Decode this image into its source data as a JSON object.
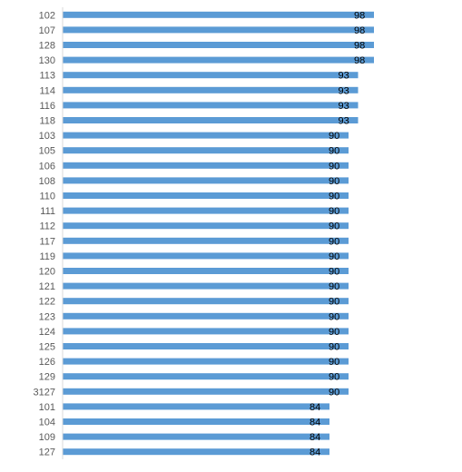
{
  "chart_data": {
    "type": "bar",
    "orientation": "horizontal",
    "categories": [
      "102",
      "107",
      "128",
      "130",
      "113",
      "114",
      "116",
      "118",
      "103",
      "105",
      "106",
      "108",
      "110",
      "111",
      "112",
      "117",
      "119",
      "120",
      "121",
      "122",
      "123",
      "124",
      "125",
      "126",
      "129",
      "3127",
      "101",
      "104",
      "109",
      "127"
    ],
    "values": [
      98,
      98,
      98,
      98,
      93,
      93,
      93,
      93,
      90,
      90,
      90,
      90,
      90,
      90,
      90,
      90,
      90,
      90,
      90,
      90,
      90,
      90,
      90,
      90,
      90,
      90,
      84,
      84,
      84,
      84
    ],
    "data_labels": true,
    "title": "",
    "xlabel": "",
    "ylabel": "",
    "xlim": [
      0,
      100
    ],
    "grid": false,
    "legend": "none",
    "bar_color": "#5b9bd5"
  }
}
